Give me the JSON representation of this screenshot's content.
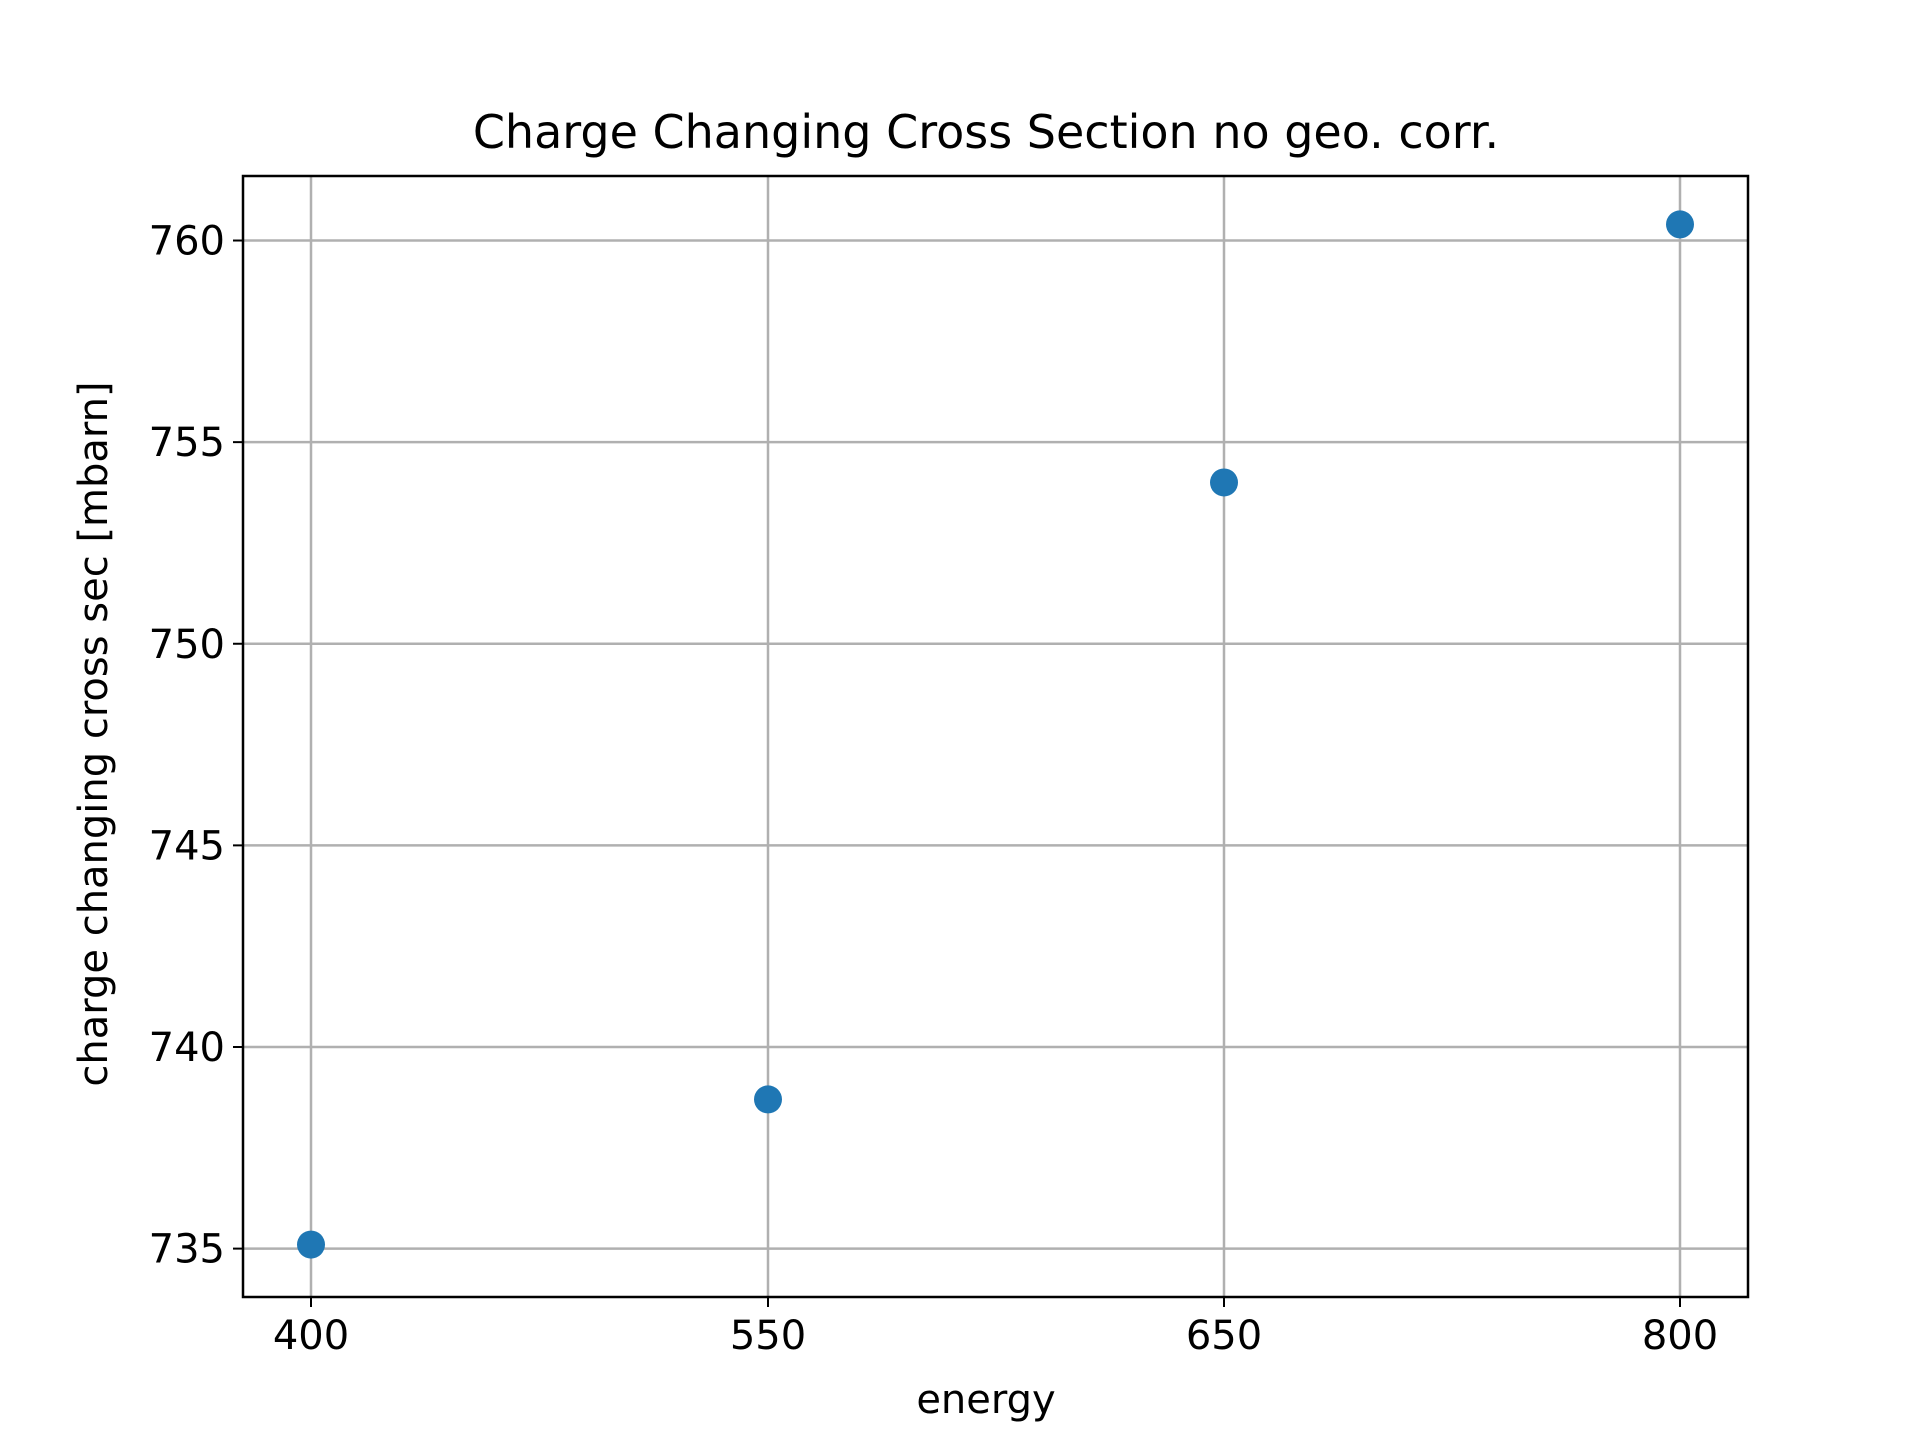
{
  "chart_data": {
    "type": "scatter",
    "title": "Charge Changing Cross Section no geo. corr.",
    "xlabel": "energy",
    "ylabel": "charge changing cross sec [mbarn]",
    "x_axis_kind": "categorical",
    "categories": [
      "400",
      "550",
      "650",
      "800"
    ],
    "series": [
      {
        "values": [
          735.1,
          738.7,
          754.0,
          760.4
        ],
        "color": "#1f77b4"
      }
    ],
    "ylim": [
      733.8,
      761.6
    ],
    "yticks": [
      735,
      740,
      745,
      750,
      755,
      760
    ],
    "grid": true,
    "legend": "none"
  }
}
